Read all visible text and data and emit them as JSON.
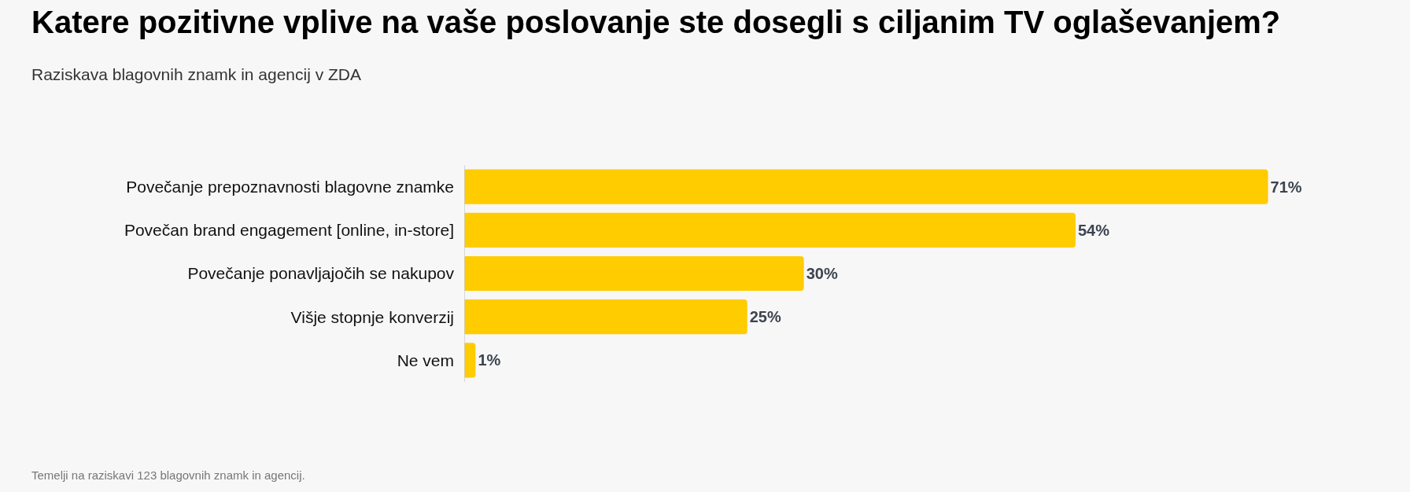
{
  "chart_data": {
    "type": "bar",
    "orientation": "horizontal",
    "title": "Katere pozitivne vplive na vaše poslovanje ste dosegli s ciljanim TV oglaševanjem?",
    "subtitle": "Raziskava blagovnih znamk in agencij v ZDA",
    "categories": [
      "Povečanje prepoznavnosti blagovne znamke",
      "Povečan brand engagement [online, in-store]",
      "Povečanje ponavljajočih se nakupov",
      "Višje stopnje konverzij",
      "Ne vem"
    ],
    "values": [
      71,
      54,
      30,
      25,
      1
    ],
    "value_labels": [
      "71%",
      "54%",
      "30%",
      "25%",
      "1%"
    ],
    "color": "#ffcc00",
    "legend": false,
    "annotations": [
      "Temelji na raziskavi 123 blagovnih znamk in agencij."
    ]
  }
}
